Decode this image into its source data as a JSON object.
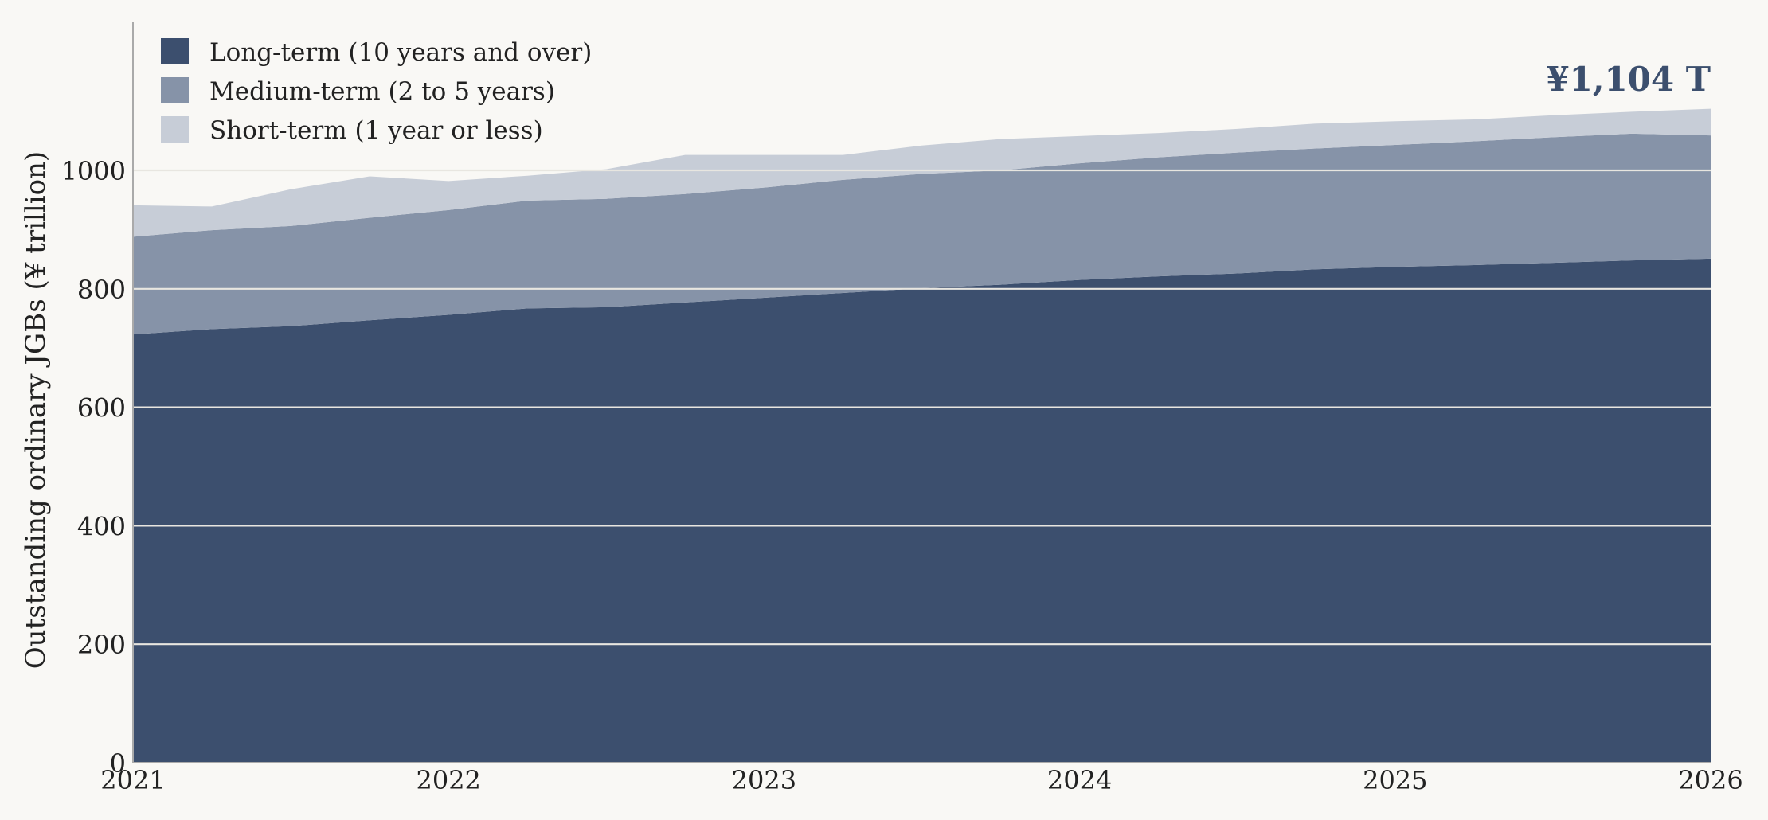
{
  "chart_data": {
    "type": "area",
    "stacked": true,
    "ylabel": "Outstanding ordinary JGBs (¥ trillion)",
    "xlabel": "",
    "annotation": "¥1,104 T",
    "xlim": [
      2021,
      2026
    ],
    "ylim": [
      0,
      1250
    ],
    "x_ticks": [
      2021,
      2022,
      2023,
      2024,
      2025,
      2026
    ],
    "y_ticks": [
      0,
      200,
      400,
      600,
      800,
      1000
    ],
    "grid": true,
    "legend_position": "top-left",
    "x": [
      2021.0,
      2021.25,
      2021.5,
      2021.75,
      2022.0,
      2022.25,
      2022.5,
      2022.75,
      2023.0,
      2023.25,
      2023.5,
      2023.75,
      2024.0,
      2024.25,
      2024.5,
      2024.75,
      2025.0,
      2025.25,
      2025.5,
      2025.75,
      2026.0
    ],
    "series": [
      {
        "name": "Long-term (10 years and over)",
        "color": "#3c4f6e",
        "values": [
          723,
          732,
          737,
          747,
          756,
          767,
          769,
          777,
          785,
          793,
          801,
          807,
          815,
          821,
          826,
          833,
          837,
          840,
          844,
          848,
          851
        ]
      },
      {
        "name": "Medium-term (2 to 5 years)",
        "color": "#8693a8",
        "values": [
          165,
          167,
          169,
          173,
          177,
          182,
          183,
          183,
          186,
          191,
          193,
          193,
          197,
          201,
          204,
          204,
          206,
          209,
          212,
          214,
          208
        ]
      },
      {
        "name": "Short-term (1 year or less)",
        "color": "#c7cdd7",
        "values": [
          53,
          40,
          62,
          70,
          49,
          42,
          50,
          66,
          55,
          42,
          48,
          53,
          46,
          41,
          40,
          42,
          40,
          37,
          37,
          37,
          45
        ]
      }
    ]
  },
  "style": {
    "background": "#f9f8f5",
    "grid_color": "#e8e6e0",
    "axis_color": "#aaaaaa",
    "text_color": "#222222",
    "annotation_color": "#3c4f6e"
  }
}
